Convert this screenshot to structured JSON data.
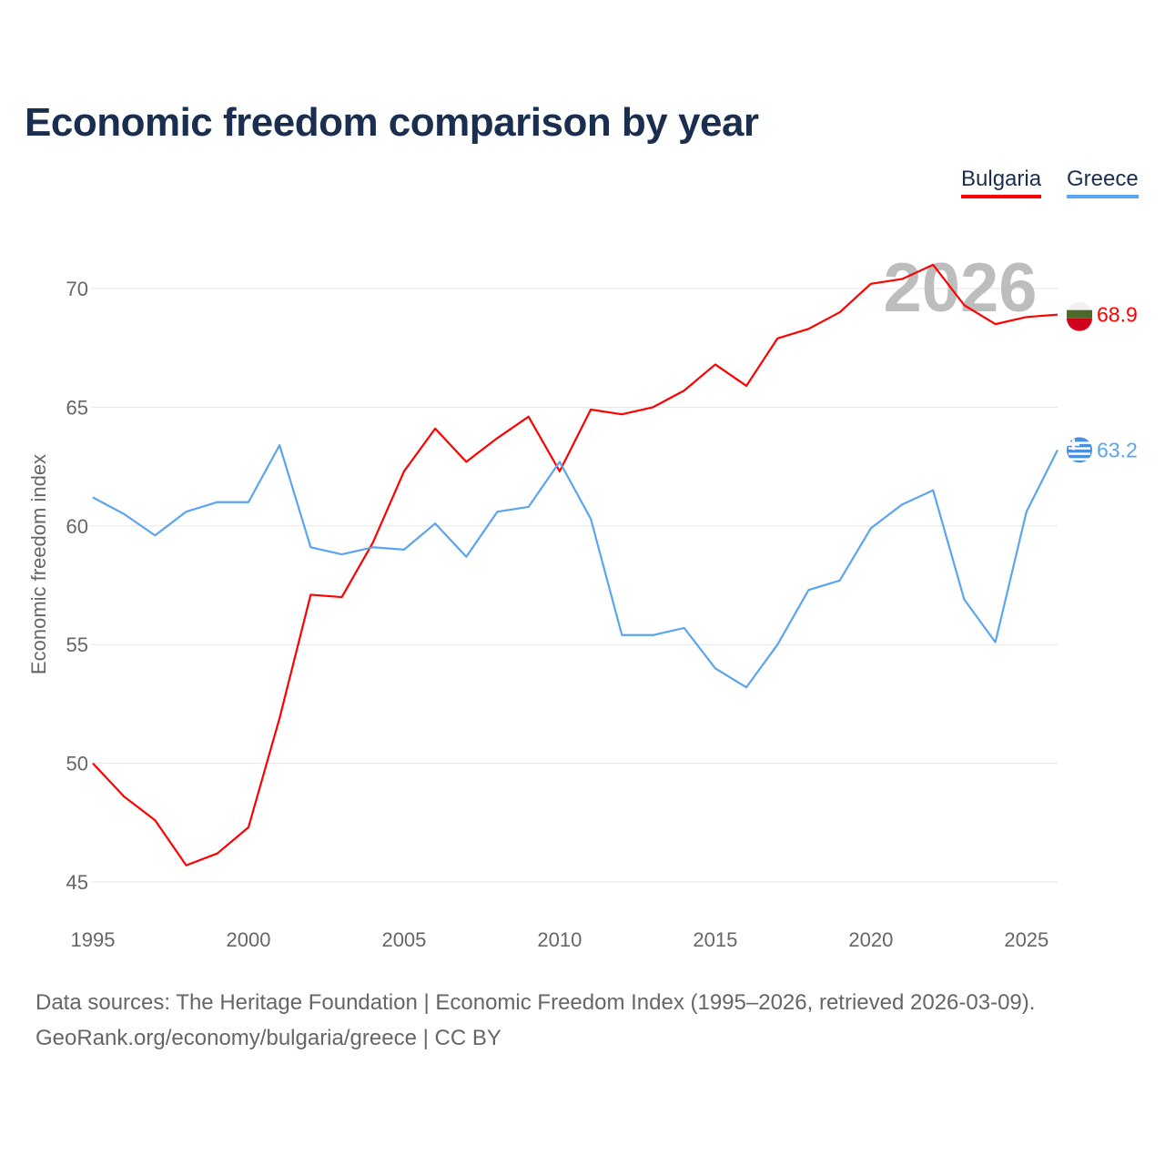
{
  "title": "Economic freedom comparison by year",
  "legend": {
    "bulgaria": "Bulgaria",
    "greece": "Greece"
  },
  "footer": {
    "line1": "Data sources: The Heritage Foundation | Economic Freedom Index (1995–2026, retrieved 2026-03-09).",
    "line2": "GeoRank.org/economy/bulgaria/greece | CC BY"
  },
  "chart_data": {
    "type": "line",
    "title": "Economic freedom comparison by year",
    "xlabel": "",
    "ylabel": "Economic freedom index",
    "year_label": "2026",
    "xlim": [
      1995,
      2026
    ],
    "ylim": [
      45,
      72
    ],
    "x_ticks": [
      1995,
      2000,
      2005,
      2010,
      2015,
      2020,
      2025
    ],
    "y_ticks": [
      45,
      50,
      55,
      60,
      65,
      70
    ],
    "grid": true,
    "legend_position": "top-right",
    "x": [
      1995,
      1996,
      1997,
      1998,
      1999,
      2000,
      2001,
      2002,
      2003,
      2004,
      2005,
      2006,
      2007,
      2008,
      2009,
      2010,
      2011,
      2012,
      2013,
      2014,
      2015,
      2016,
      2017,
      2018,
      2019,
      2020,
      2021,
      2022,
      2023,
      2024,
      2025,
      2026
    ],
    "series": [
      {
        "name": "Bulgaria",
        "color": "#ff0000",
        "end_label": "68.9",
        "flag": "bulgaria-flag",
        "values": [
          50.0,
          48.6,
          47.6,
          45.7,
          46.2,
          47.3,
          51.9,
          57.1,
          57.0,
          59.3,
          62.3,
          64.1,
          62.7,
          63.7,
          64.6,
          62.3,
          64.9,
          64.7,
          65.0,
          65.7,
          66.8,
          65.9,
          67.9,
          68.3,
          69.0,
          70.2,
          70.4,
          71.0,
          69.3,
          68.5,
          68.8,
          68.9
        ]
      },
      {
        "name": "Greece",
        "color": "#5ba4f0",
        "end_label": "63.2",
        "flag": "greece-flag",
        "values": [
          61.2,
          60.5,
          59.6,
          60.6,
          61.0,
          61.0,
          63.4,
          59.1,
          58.8,
          59.1,
          59.0,
          60.1,
          58.7,
          60.6,
          60.8,
          62.7,
          60.3,
          55.4,
          55.4,
          55.7,
          54.0,
          53.2,
          55.0,
          57.3,
          57.7,
          59.9,
          60.9,
          61.5,
          56.9,
          55.1,
          60.6,
          63.2
        ]
      }
    ]
  }
}
